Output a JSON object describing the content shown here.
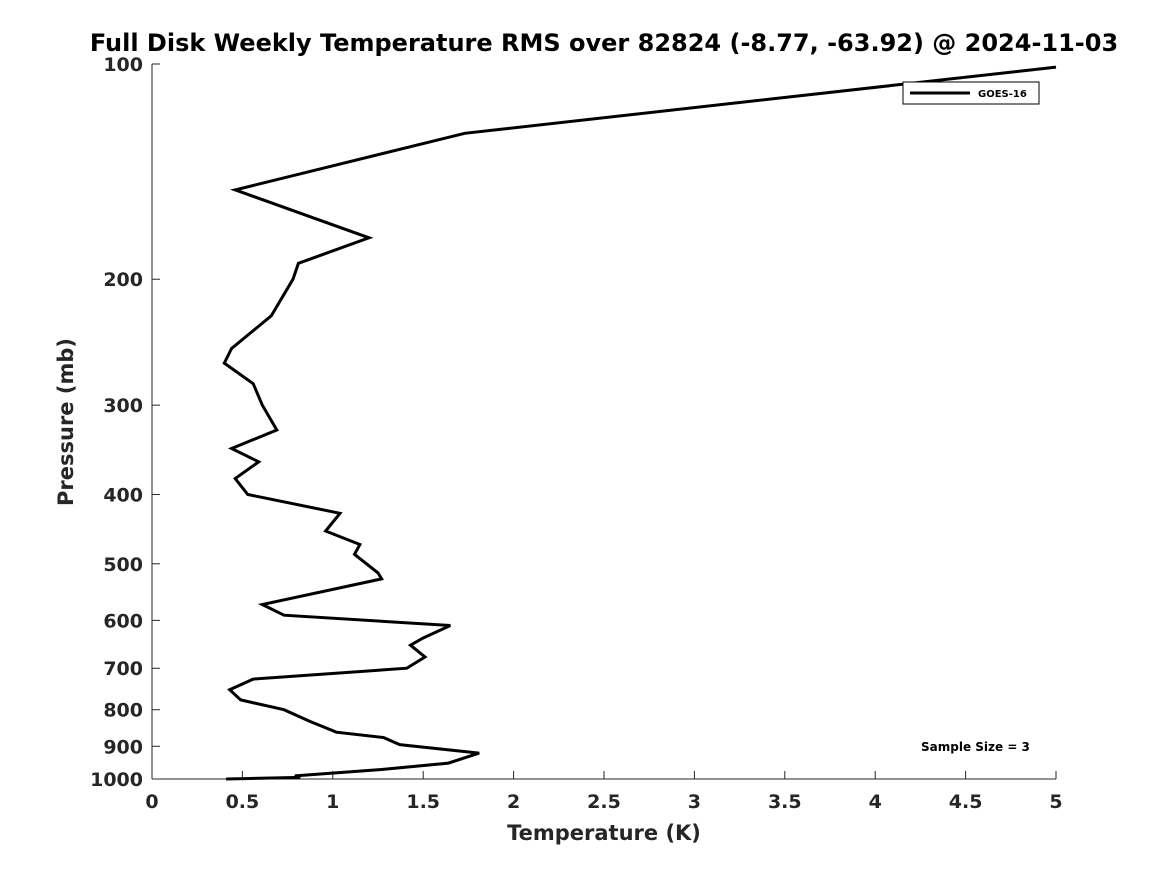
{
  "chart_data": {
    "type": "line",
    "title": "Full Disk Weekly Temperature RMS over 82824 (-8.77, -63.92) @ 2024-11-03",
    "xlabel": "Temperature (K)",
    "ylabel": "Pressure (mb)",
    "xlim": [
      0,
      5
    ],
    "ylim": [
      100,
      1000
    ],
    "y_scale": "log",
    "y_reversed": true,
    "x_ticks": [
      0,
      0.5,
      1,
      1.5,
      2,
      2.5,
      3,
      3.5,
      4,
      4.5,
      5
    ],
    "x_tick_labels": [
      "0",
      "0.5",
      "1",
      "1.5",
      "2",
      "2.5",
      "3",
      "3.5",
      "4",
      "4.5",
      "5"
    ],
    "y_ticks": [
      100,
      200,
      300,
      400,
      500,
      600,
      700,
      800,
      900,
      1000
    ],
    "y_tick_labels": [
      "100",
      "200",
      "300",
      "400",
      "500",
      "600",
      "700",
      "800",
      "900",
      "1000"
    ],
    "grid": false,
    "legend_position": "top-right",
    "annotation": "Sample Size = 3",
    "series": [
      {
        "name": "GOES-16",
        "color": "#000000",
        "x": [
          5.0,
          1.73,
          0.46,
          1.2,
          0.81,
          0.78,
          0.66,
          0.44,
          0.4,
          0.56,
          0.61,
          0.69,
          0.44,
          0.59,
          0.46,
          0.53,
          1.04,
          0.96,
          1.15,
          1.12,
          1.25,
          1.27,
          0.61,
          0.73,
          1.65,
          1.5,
          1.43,
          1.51,
          1.41,
          0.56,
          0.43,
          0.49,
          0.73,
          0.87,
          1.02,
          1.28,
          1.37,
          1.81,
          1.64,
          1.27,
          0.79,
          0.82,
          0.41
        ],
        "y": [
          101,
          125,
          150,
          175,
          190,
          200,
          225,
          250,
          262,
          280,
          300,
          325,
          345,
          360,
          380,
          400,
          425,
          450,
          470,
          485,
          515,
          525,
          570,
          590,
          610,
          635,
          650,
          675,
          700,
          725,
          750,
          775,
          800,
          830,
          860,
          875,
          895,
          920,
          950,
          970,
          990,
          995,
          1000
        ]
      }
    ]
  }
}
